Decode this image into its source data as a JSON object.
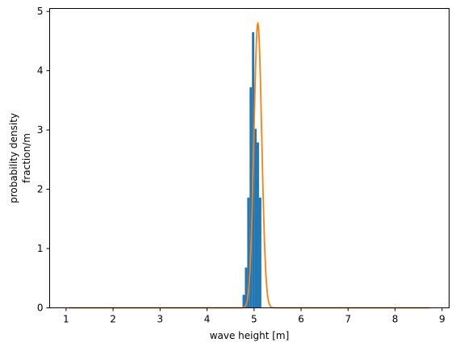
{
  "chart_data": {
    "type": "bar",
    "title": "",
    "xlabel": "wave height [m]",
    "ylabel_lines": [
      "probability density",
      "fraction/m"
    ],
    "xlim": [
      0.65,
      9.15
    ],
    "ylim": [
      0,
      5.05
    ],
    "x_ticks": [
      1,
      2,
      3,
      4,
      5,
      6,
      7,
      8,
      9
    ],
    "y_ticks": [
      0,
      1,
      2,
      3,
      4,
      5
    ],
    "grid": false,
    "colors": {
      "histogram": "#1f77b4",
      "fit": "#ff7f0e"
    },
    "histogram": {
      "bin_width": 0.05,
      "bins": [
        {
          "x": 4.78,
          "value": 0.22
        },
        {
          "x": 4.83,
          "value": 0.68
        },
        {
          "x": 4.88,
          "value": 1.86
        },
        {
          "x": 4.93,
          "value": 3.72
        },
        {
          "x": 4.98,
          "value": 4.65
        },
        {
          "x": 5.03,
          "value": 3.02
        },
        {
          "x": 5.08,
          "value": 2.79
        },
        {
          "x": 5.13,
          "value": 1.86
        }
      ]
    },
    "fit_curve": {
      "mean": 5.08,
      "peak": 4.8,
      "sigma": 0.083,
      "x_range": [
        1.05,
        8.75
      ]
    }
  }
}
